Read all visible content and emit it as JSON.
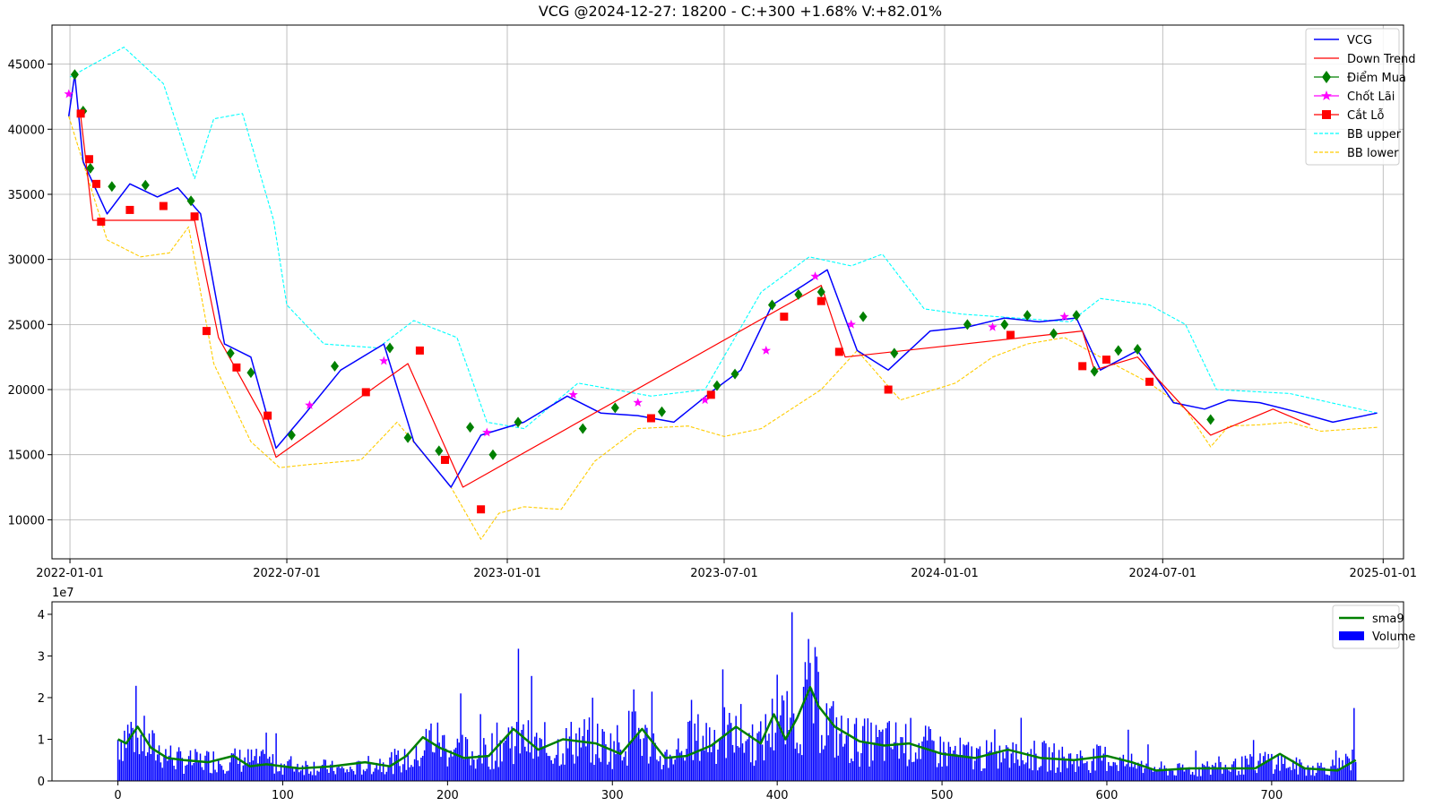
{
  "chart_data": [
    {
      "type": "line",
      "title": "VCG @2024-12-27: 18200 - C:+300 +1.68% V:+82.01%",
      "ylim": [
        7000,
        48000
      ],
      "grid": true,
      "legend": "top-right",
      "x_ticks": [
        "2022-01-01",
        "2022-07-01",
        "2023-01-01",
        "2023-07-01",
        "2024-01-01",
        "2024-07-01",
        "2025-01-01"
      ],
      "y_ticks": [
        10000,
        15000,
        20000,
        25000,
        30000,
        35000,
        40000,
        45000
      ],
      "legend_entries": [
        "VCG",
        "Down Trend",
        "Điểm Mua",
        "Chốt Lãi",
        "Cắt Lỗ",
        "BB upper",
        "BB lower"
      ],
      "series": [
        {
          "name": "VCG",
          "color": "#0000ff",
          "x": [
            "2021-12-31",
            "2022-01-05",
            "2022-01-12",
            "2022-02-01",
            "2022-02-20",
            "2022-03-15",
            "2022-04-01",
            "2022-04-20",
            "2022-05-10",
            "2022-06-01",
            "2022-06-22",
            "2022-07-15",
            "2022-08-15",
            "2022-09-20",
            "2022-10-15",
            "2022-11-15",
            "2022-12-10",
            "2023-01-15",
            "2023-02-20",
            "2023-03-20",
            "2023-04-20",
            "2023-05-20",
            "2023-06-20",
            "2023-07-15",
            "2023-08-10",
            "2023-09-05",
            "2023-09-25",
            "2023-10-20",
            "2023-11-15",
            "2023-12-20",
            "2024-01-20",
            "2024-02-20",
            "2024-03-20",
            "2024-04-20",
            "2024-05-10",
            "2024-06-10",
            "2024-07-10",
            "2024-08-05",
            "2024-08-25",
            "2024-09-20",
            "2024-10-20",
            "2024-11-20",
            "2024-12-27"
          ],
          "values": [
            41000,
            44200,
            37500,
            33500,
            35800,
            34800,
            35500,
            33500,
            23500,
            22500,
            15500,
            18000,
            21500,
            23500,
            16000,
            12500,
            16500,
            17500,
            19500,
            18200,
            18000,
            17500,
            19800,
            21500,
            26500,
            28000,
            29200,
            23000,
            21500,
            24500,
            24800,
            25500,
            25200,
            25500,
            21500,
            23000,
            19000,
            18500,
            19200,
            19000,
            18300,
            17500,
            18200
          ]
        },
        {
          "name": "Down Trend",
          "color": "#ff0000",
          "x": [
            "2022-01-10",
            "2022-01-20",
            "2022-04-15",
            "2022-05-05",
            "2022-06-10",
            "2022-06-22",
            "2022-10-10",
            "2022-11-25",
            "2023-09-20",
            "2023-10-10",
            "2024-04-25",
            "2024-05-05",
            "2024-06-10",
            "2024-07-20",
            "2024-08-10",
            "2024-10-01",
            "2024-11-01"
          ],
          "values": [
            41000,
            33000,
            33000,
            24000,
            18000,
            14800,
            22000,
            12500,
            28000,
            22500,
            24500,
            21500,
            22500,
            18500,
            16500,
            18500,
            17300
          ]
        },
        {
          "name": "BB upper",
          "color": "#00ffff",
          "x": [
            "2022-01-01",
            "2022-02-15",
            "2022-03-20",
            "2022-04-15",
            "2022-05-01",
            "2022-05-25",
            "2022-06-20",
            "2022-07-01",
            "2022-08-01",
            "2022-09-15",
            "2022-10-15",
            "2022-11-20",
            "2022-12-15",
            "2023-01-15",
            "2023-03-01",
            "2023-05-01",
            "2023-06-15",
            "2023-08-01",
            "2023-09-10",
            "2023-10-15",
            "2023-11-10",
            "2023-12-15",
            "2024-01-15",
            "2024-03-01",
            "2024-04-15",
            "2024-05-10",
            "2024-06-20",
            "2024-07-20",
            "2024-08-15",
            "2024-10-15",
            "2024-12-27"
          ],
          "values": [
            44000,
            46300,
            43500,
            36200,
            40800,
            41200,
            33000,
            26500,
            23500,
            23200,
            25300,
            24000,
            17500,
            17000,
            20500,
            19500,
            20000,
            27500,
            30200,
            29500,
            30400,
            26200,
            25800,
            25500,
            25200,
            27000,
            26500,
            25000,
            20000,
            19700,
            18200
          ]
        },
        {
          "name": "BB lower",
          "color": "#ffcc00",
          "x": [
            "2021-12-31",
            "2022-02-01",
            "2022-03-01",
            "2022-03-25",
            "2022-04-10",
            "2022-05-01",
            "2022-06-01",
            "2022-06-25",
            "2022-07-15",
            "2022-09-01",
            "2022-10-01",
            "2022-11-15",
            "2022-12-10",
            "2022-12-25",
            "2023-01-15",
            "2023-02-15",
            "2023-03-15",
            "2023-04-20",
            "2023-06-01",
            "2023-07-01",
            "2023-08-01",
            "2023-09-20",
            "2023-10-20",
            "2023-11-25",
            "2024-01-10",
            "2024-02-10",
            "2024-03-10",
            "2024-04-10",
            "2024-05-10",
            "2024-06-20",
            "2024-07-20",
            "2024-08-10",
            "2024-08-25",
            "2024-09-20",
            "2024-10-15",
            "2024-11-10",
            "2024-12-27"
          ],
          "values": [
            41000,
            31500,
            30200,
            30500,
            32500,
            22000,
            16000,
            14000,
            14200,
            14600,
            17500,
            12500,
            8500,
            10500,
            11000,
            10800,
            14500,
            17000,
            17200,
            16400,
            17000,
            20000,
            23000,
            19200,
            20500,
            22500,
            23500,
            24000,
            22500,
            20500,
            18500,
            15600,
            17200,
            17300,
            17500,
            16800,
            17100
          ]
        }
      ],
      "markers": {
        "diem_mua": {
          "name": "Điểm Mua",
          "color": "#008000",
          "x": [
            "2022-01-05",
            "2022-01-12",
            "2022-01-18",
            "2022-02-05",
            "2022-03-05",
            "2022-04-12",
            "2022-05-15",
            "2022-06-01",
            "2022-07-05",
            "2022-08-10",
            "2022-09-25",
            "2022-10-10",
            "2022-11-05",
            "2022-12-01",
            "2022-12-20",
            "2023-01-10",
            "2023-03-05",
            "2023-04-01",
            "2023-05-10",
            "2023-06-25",
            "2023-07-10",
            "2023-08-10",
            "2023-09-01",
            "2023-09-20",
            "2023-10-25",
            "2023-11-20",
            "2024-01-20",
            "2024-02-20",
            "2024-03-10",
            "2024-04-01",
            "2024-04-20",
            "2024-05-05",
            "2024-05-25",
            "2024-06-10",
            "2024-08-10"
          ],
          "values": [
            44200,
            41400,
            37000,
            35600,
            35700,
            34500,
            22800,
            21300,
            16500,
            21800,
            23200,
            16300,
            15300,
            17100,
            15000,
            17500,
            17000,
            18600,
            18300,
            20300,
            21200,
            26500,
            27300,
            27500,
            25600,
            22800,
            25000,
            25000,
            25700,
            24300,
            25700,
            21400,
            23000,
            23100,
            17700
          ]
        },
        "chot_lai": {
          "name": "Chốt Lãi",
          "color": "#ff00ff",
          "x": [
            "2021-12-31",
            "2022-07-20",
            "2022-09-20",
            "2022-12-15",
            "2023-02-25",
            "2023-04-20",
            "2023-06-15",
            "2023-08-05",
            "2023-09-15",
            "2023-10-15",
            "2024-02-10",
            "2024-04-10"
          ],
          "values": [
            42700,
            18800,
            22200,
            16700,
            19600,
            19000,
            19200,
            23000,
            28700,
            25000,
            24800,
            25600
          ]
        },
        "cat_lo": {
          "name": "Cắt Lỗ",
          "color": "#ff0000",
          "x": [
            "2022-01-10",
            "2022-01-17",
            "2022-01-23",
            "2022-01-27",
            "2022-02-20",
            "2022-03-20",
            "2022-04-15",
            "2022-04-25",
            "2022-05-20",
            "2022-06-15",
            "2022-09-05",
            "2022-10-20",
            "2022-11-10",
            "2022-12-10",
            "2023-05-01",
            "2023-06-20",
            "2023-08-20",
            "2023-09-20",
            "2023-10-05",
            "2023-11-15",
            "2024-02-25",
            "2024-04-25",
            "2024-05-15",
            "2024-06-20"
          ],
          "values": [
            41200,
            37700,
            35800,
            32900,
            33800,
            34100,
            33300,
            24500,
            21700,
            18000,
            19800,
            23000,
            14600,
            10800,
            17800,
            19600,
            25600,
            26800,
            22900,
            20000,
            24200,
            21800,
            22300,
            20600
          ]
        }
      }
    },
    {
      "type": "bar",
      "title": "",
      "scale_label": "1e7",
      "ylim": [
        0,
        4.3
      ],
      "xlim": [
        -40,
        780
      ],
      "x_ticks": [
        0,
        100,
        200,
        300,
        400,
        500,
        600,
        700
      ],
      "y_ticks": [
        0,
        1,
        2,
        3,
        4
      ],
      "legend": "top-right",
      "legend_entries": [
        "sma9",
        "Volume"
      ],
      "volume_color": "#0000ff",
      "sma_color": "#008000",
      "n_bars": 752,
      "volume_profile": {
        "x": [
          0,
          10,
          20,
          40,
          60,
          80,
          100,
          120,
          140,
          160,
          180,
          190,
          200,
          220,
          240,
          260,
          280,
          300,
          315,
          330,
          350,
          370,
          390,
          400,
          410,
          420,
          430,
          440,
          460,
          480,
          500,
          520,
          540,
          560,
          580,
          600,
          620,
          640,
          660,
          680,
          700,
          720,
          740,
          751
        ],
        "values": [
          1.0,
          1.2,
          0.8,
          0.45,
          0.5,
          0.5,
          0.4,
          0.35,
          0.25,
          0.45,
          0.5,
          1.05,
          0.8,
          0.6,
          1.1,
          0.7,
          1.0,
          0.8,
          1.2,
          0.5,
          1.0,
          1.1,
          0.9,
          1.5,
          1.2,
          2.2,
          1.4,
          1.0,
          0.9,
          0.95,
          0.7,
          0.6,
          0.6,
          0.6,
          0.5,
          0.55,
          0.35,
          0.25,
          0.3,
          0.35,
          0.5,
          0.3,
          0.35,
          0.55
        ]
      },
      "sma9": {
        "x": [
          0,
          5,
          12,
          20,
          30,
          40,
          55,
          70,
          80,
          90,
          110,
          130,
          150,
          165,
          175,
          185,
          195,
          210,
          225,
          240,
          255,
          270,
          290,
          305,
          318,
          332,
          345,
          360,
          375,
          390,
          398,
          405,
          412,
          420,
          425,
          435,
          450,
          465,
          480,
          500,
          520,
          540,
          560,
          580,
          600,
          615,
          630,
          650,
          670,
          690,
          705,
          720,
          740,
          751
        ],
        "values": [
          1.0,
          0.9,
          1.3,
          0.8,
          0.55,
          0.5,
          0.45,
          0.6,
          0.35,
          0.4,
          0.3,
          0.35,
          0.45,
          0.35,
          0.6,
          1.05,
          0.8,
          0.55,
          0.6,
          1.25,
          0.75,
          1.0,
          0.9,
          0.65,
          1.25,
          0.55,
          0.6,
          0.85,
          1.3,
          0.9,
          1.6,
          1.0,
          1.5,
          2.25,
          1.8,
          1.3,
          0.95,
          0.85,
          0.9,
          0.65,
          0.55,
          0.75,
          0.55,
          0.5,
          0.6,
          0.45,
          0.25,
          0.3,
          0.3,
          0.3,
          0.65,
          0.3,
          0.25,
          0.5
        ]
      }
    }
  ]
}
